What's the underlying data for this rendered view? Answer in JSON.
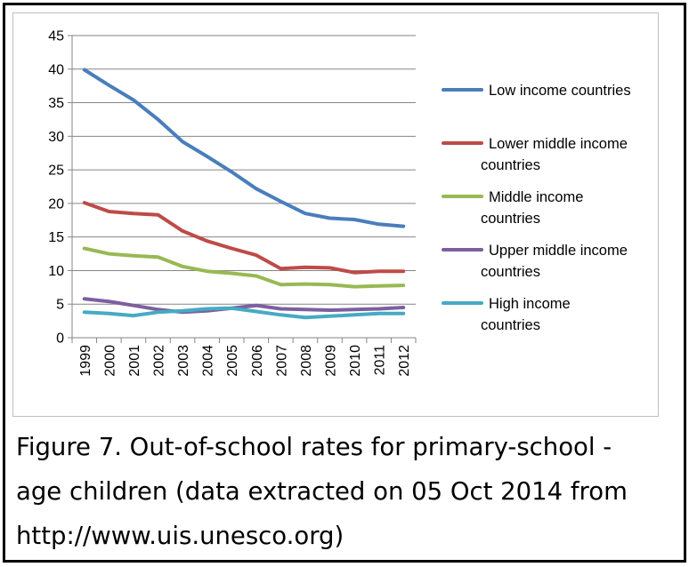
{
  "chart_data": {
    "type": "line",
    "x": [
      "1999",
      "2000",
      "2001",
      "2002",
      "2003",
      "2004",
      "2005",
      "2006",
      "2007",
      "2008",
      "2009",
      "2010",
      "2011",
      "2012"
    ],
    "ylim": [
      0,
      45
    ],
    "yticks": [
      0,
      5,
      10,
      15,
      20,
      25,
      30,
      35,
      40,
      45
    ],
    "grid": true,
    "legend_position": "right",
    "series": [
      {
        "name": "Low income countries",
        "name_lines": [
          "Low income countries"
        ],
        "color": "#4a7ebb",
        "values": [
          39.9,
          37.6,
          35.4,
          32.5,
          29.2,
          27.0,
          24.7,
          22.2,
          20.3,
          18.5,
          17.8,
          17.6,
          16.9,
          16.6
        ]
      },
      {
        "name": "Lower middle income countries",
        "name_lines": [
          "Lower middle income",
          "countries"
        ],
        "color": "#be4b48",
        "values": [
          20.1,
          18.8,
          18.5,
          18.3,
          15.9,
          14.4,
          13.3,
          12.3,
          10.3,
          10.5,
          10.4,
          9.7,
          9.9,
          9.9
        ]
      },
      {
        "name": "Middle income countries",
        "name_lines": [
          "Middle income",
          "countries"
        ],
        "color": "#98b954",
        "values": [
          13.3,
          12.5,
          12.2,
          12.0,
          10.6,
          9.9,
          9.6,
          9.2,
          7.9,
          8.0,
          7.9,
          7.6,
          7.7,
          7.8
        ]
      },
      {
        "name": "Upper middle income countries",
        "name_lines": [
          "Upper middle income",
          "countries"
        ],
        "color": "#7d5fa0",
        "values": [
          5.8,
          5.4,
          4.8,
          4.2,
          3.8,
          4.0,
          4.4,
          4.8,
          4.3,
          4.2,
          4.1,
          4.2,
          4.3,
          4.5
        ]
      },
      {
        "name": "High income countries",
        "name_lines": [
          "High income",
          "countries"
        ],
        "color": "#46aac4",
        "values": [
          3.8,
          3.6,
          3.3,
          3.8,
          4.0,
          4.3,
          4.4,
          3.9,
          3.4,
          3.0,
          3.2,
          3.4,
          3.6,
          3.6
        ]
      }
    ]
  },
  "caption": {
    "line1": "Figure 7.  Out-of-school rates for primary-school -",
    "line2": "age children (data extracted on 05 Oct 2014 from",
    "line3": "http://www.uis.unesco.org)"
  }
}
